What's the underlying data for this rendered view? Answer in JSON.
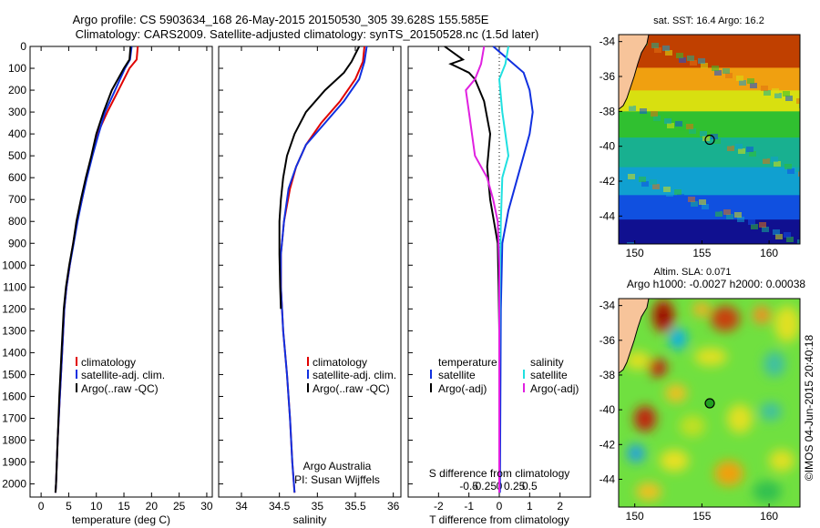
{
  "header": {
    "line1": "Argo profile: CS 5903634_168 26-May-2015 20150530_305 39.628S 155.585E",
    "line2": "Climatology: CARS2009. Satellite-adjusted climatology: synTS_20150528.nc (1.5d later)"
  },
  "side_label": "©IMOS 04-Jun-2015 20:40:18",
  "chart_data": [
    {
      "id": "temperature",
      "type": "line",
      "xlabel": "temperature (deg C)",
      "ylabel": "",
      "xlim": [
        -2,
        31
      ],
      "ylim": [
        2060,
        0
      ],
      "x_ticks": [
        "0",
        "5",
        "10",
        "15",
        "20",
        "25",
        "30"
      ],
      "y_ticks": [
        "0",
        "100",
        "200",
        "300",
        "400",
        "500",
        "600",
        "700",
        "800",
        "900",
        "1000",
        "1100",
        "1200",
        "1300",
        "1400",
        "1500",
        "1600",
        "1700",
        "1800",
        "1900",
        "2000"
      ],
      "legend": [
        "climatology",
        "satellite-adj. clim.",
        "Argo(..raw -QC)"
      ],
      "colors": [
        "#e00000",
        "#1030e0",
        "#000000"
      ],
      "series": [
        {
          "name": "climatology",
          "points": [
            [
              17.5,
              0
            ],
            [
              17.3,
              60
            ],
            [
              16.0,
              100
            ],
            [
              14.0,
              200
            ],
            [
              12.0,
              300
            ],
            [
              10.2,
              400
            ],
            [
              9.2,
              500
            ],
            [
              8.2,
              600
            ],
            [
              7.4,
              700
            ],
            [
              6.5,
              800
            ],
            [
              5.8,
              900
            ],
            [
              5.2,
              1000
            ],
            [
              4.6,
              1100
            ],
            [
              4.2,
              1200
            ],
            [
              3.8,
              1400
            ],
            [
              3.4,
              1600
            ],
            [
              3.0,
              1800
            ],
            [
              2.7,
              2000
            ],
            [
              2.6,
              2040
            ]
          ]
        },
        {
          "name": "satellite-adj. clim.",
          "points": [
            [
              16.4,
              0
            ],
            [
              16.1,
              60
            ],
            [
              15.2,
              100
            ],
            [
              13.4,
              200
            ],
            [
              11.6,
              300
            ],
            [
              10.4,
              400
            ],
            [
              9.3,
              500
            ],
            [
              8.3,
              600
            ],
            [
              7.4,
              700
            ],
            [
              6.6,
              800
            ],
            [
              5.9,
              900
            ],
            [
              5.2,
              1000
            ],
            [
              4.6,
              1100
            ],
            [
              4.2,
              1200
            ],
            [
              3.8,
              1400
            ],
            [
              3.4,
              1600
            ],
            [
              3.0,
              1800
            ],
            [
              2.7,
              2000
            ],
            [
              2.6,
              2040
            ]
          ]
        },
        {
          "name": "Argo(..raw -QC)",
          "points": [
            [
              16.2,
              0
            ],
            [
              16.0,
              60
            ],
            [
              15.0,
              100
            ],
            [
              12.8,
              200
            ],
            [
              11.3,
              300
            ],
            [
              10.0,
              400
            ],
            [
              9.1,
              500
            ],
            [
              8.1,
              600
            ],
            [
              7.2,
              700
            ],
            [
              6.4,
              800
            ],
            [
              5.8,
              900
            ],
            [
              5.1,
              1000
            ],
            [
              4.5,
              1100
            ],
            [
              4.1,
              1200
            ],
            [
              3.7,
              1400
            ],
            [
              3.3,
              1600
            ],
            [
              3.0,
              1800
            ],
            [
              2.7,
              2000
            ],
            [
              2.6,
              2040
            ]
          ]
        }
      ]
    },
    {
      "id": "salinity",
      "type": "line",
      "xlabel": "salinity",
      "xlim": [
        33.7,
        36.1
      ],
      "ylim": [
        2060,
        0
      ],
      "x_ticks": [
        "34",
        "34.5",
        "35",
        "35.5",
        "36"
      ],
      "legend": [
        "climatology",
        "satellite-adj. clim.",
        "Argo(..raw -QC)"
      ],
      "colors": [
        "#e00000",
        "#1030e0",
        "#000000"
      ],
      "annotation": [
        "Argo Australia",
        "PI: Susan Wijffels"
      ],
      "series": [
        {
          "name": "climatology",
          "points": [
            [
              35.62,
              0
            ],
            [
              35.6,
              70
            ],
            [
              35.5,
              150
            ],
            [
              35.3,
              250
            ],
            [
              35.05,
              350
            ],
            [
              34.85,
              450
            ],
            [
              34.72,
              550
            ],
            [
              34.64,
              650
            ],
            [
              34.56,
              800
            ],
            [
              34.52,
              950
            ],
            [
              34.52,
              1100
            ],
            [
              34.55,
              1300
            ],
            [
              34.6,
              1500
            ],
            [
              34.64,
              1700
            ],
            [
              34.67,
              1900
            ],
            [
              34.7,
              2040
            ]
          ]
        },
        {
          "name": "satellite-adj. clim.",
          "points": [
            [
              35.65,
              0
            ],
            [
              35.62,
              70
            ],
            [
              35.55,
              150
            ],
            [
              35.35,
              250
            ],
            [
              35.1,
              350
            ],
            [
              34.85,
              450
            ],
            [
              34.72,
              550
            ],
            [
              34.62,
              650
            ],
            [
              34.56,
              800
            ],
            [
              34.52,
              950
            ],
            [
              34.52,
              1100
            ],
            [
              34.55,
              1300
            ],
            [
              34.6,
              1500
            ],
            [
              34.64,
              1700
            ],
            [
              34.67,
              1900
            ],
            [
              34.7,
              2040
            ]
          ]
        },
        {
          "name": "Argo(..raw -QC)",
          "points": [
            [
              35.55,
              0
            ],
            [
              35.45,
              70
            ],
            [
              35.35,
              120
            ],
            [
              35.1,
              200
            ],
            [
              34.85,
              300
            ],
            [
              34.7,
              400
            ],
            [
              34.6,
              500
            ],
            [
              34.55,
              600
            ],
            [
              34.52,
              700
            ],
            [
              34.5,
              800
            ],
            [
              34.5,
              950
            ],
            [
              34.51,
              1100
            ],
            [
              34.52,
              1200
            ]
          ]
        }
      ]
    },
    {
      "id": "difference",
      "type": "line",
      "xlabel": "T difference from climatology",
      "xlabel_top": "S difference from climatology",
      "xlim": [
        -3,
        3
      ],
      "ylim": [
        2060,
        0
      ],
      "x_ticks": [
        "-2",
        "-1",
        "0",
        "1",
        "2"
      ],
      "x_ticks_top": [
        "-0.5",
        "-0.25",
        "0",
        "0.25",
        "0.5"
      ],
      "legend_temperature": [
        "temperature",
        "satellite",
        "Argo(-adj)"
      ],
      "legend_salinity": [
        "salinity",
        "satellite",
        "Argo(-adj)"
      ],
      "colors": [
        "#1030e0",
        "#000000",
        "#20e0e0",
        "#e020e0"
      ],
      "series": [
        {
          "name": "T satellite",
          "points": [
            [
              -0.2,
              0
            ],
            [
              0.3,
              60
            ],
            [
              0.8,
              120
            ],
            [
              1.0,
              200
            ],
            [
              1.1,
              300
            ],
            [
              1.0,
              400
            ],
            [
              0.8,
              500
            ],
            [
              0.6,
              600
            ],
            [
              0.3,
              750
            ],
            [
              0.1,
              900
            ],
            [
              0.05,
              1200
            ],
            [
              0.02,
              2040
            ]
          ]
        },
        {
          "name": "T Argo(-adj)",
          "points": [
            [
              -1.8,
              0
            ],
            [
              -1.2,
              60
            ],
            [
              -1.6,
              80
            ],
            [
              -1.0,
              120
            ],
            [
              -0.8,
              150
            ],
            [
              -0.5,
              250
            ],
            [
              -0.3,
              400
            ],
            [
              -0.4,
              550
            ],
            [
              -0.3,
              700
            ],
            [
              -0.05,
              900
            ],
            [
              -0.02,
              1100
            ],
            [
              0.0,
              1300
            ],
            [
              0.0,
              2040
            ]
          ]
        },
        {
          "name": "S satellite",
          "points": [
            [
              0.3,
              0
            ],
            [
              0.2,
              80
            ],
            [
              0.0,
              150
            ],
            [
              0.1,
              300
            ],
            [
              0.2,
              400
            ],
            [
              0.3,
              500
            ],
            [
              0.1,
              600
            ],
            [
              0.05,
              800
            ],
            [
              0.02,
              1100
            ],
            [
              0.0,
              1500
            ],
            [
              0.0,
              2040
            ]
          ]
        },
        {
          "name": "S Argo(-adj)",
          "points": [
            [
              -0.5,
              0
            ],
            [
              -0.6,
              80
            ],
            [
              -0.8,
              150
            ],
            [
              -1.1,
              200
            ],
            [
              -1.0,
              300
            ],
            [
              -0.8,
              500
            ],
            [
              -0.4,
              600
            ],
            [
              -0.2,
              700
            ],
            [
              -0.05,
              800
            ],
            [
              0.0,
              1000
            ],
            [
              0.0,
              1500
            ],
            [
              0.0,
              2040
            ]
          ]
        }
      ]
    },
    {
      "id": "sst_map",
      "type": "heatmap",
      "title": "sat. SST: 16.4  Argo: 16.2",
      "xlim": [
        148.8,
        162.3
      ],
      "ylim": [
        -45.6,
        -33.6
      ],
      "x_ticks": [
        "150",
        "155",
        "160"
      ],
      "y_ticks": [
        "-34",
        "-36",
        "-38",
        "-40",
        "-42",
        "-44"
      ],
      "marker": {
        "lon": 155.585,
        "lat": -39.628
      },
      "bands": [
        {
          "lat_top": -33.6,
          "lat_bottom": -35.5,
          "color": "#c04000"
        },
        {
          "lat_top": -35.5,
          "lat_bottom": -36.8,
          "color": "#f0a010"
        },
        {
          "lat_top": -36.8,
          "lat_bottom": -38.0,
          "color": "#d8e010"
        },
        {
          "lat_top": -38.0,
          "lat_bottom": -39.5,
          "color": "#30c030"
        },
        {
          "lat_top": -39.5,
          "lat_bottom": -41.2,
          "color": "#18b090"
        },
        {
          "lat_top": -41.2,
          "lat_bottom": -42.8,
          "color": "#10a0d0"
        },
        {
          "lat_top": -42.8,
          "lat_bottom": -44.2,
          "color": "#1050e0"
        },
        {
          "lat_top": -44.2,
          "lat_bottom": -45.6,
          "color": "#101090"
        }
      ]
    },
    {
      "id": "sla_map",
      "type": "heatmap",
      "title_line1": "Altim. SLA: 0.071",
      "title_line2": "Argo h1000: -0.0027 h2000: 0.00038",
      "xlim": [
        148.8,
        162.3
      ],
      "ylim": [
        -45.6,
        -33.6
      ],
      "x_ticks": [
        "150",
        "155",
        "160"
      ],
      "y_ticks": [
        "-34",
        "-36",
        "-38",
        "-40",
        "-42",
        "-44"
      ],
      "marker": {
        "lon": 155.585,
        "lat": -39.628
      },
      "base_color": "#70e040"
    }
  ]
}
